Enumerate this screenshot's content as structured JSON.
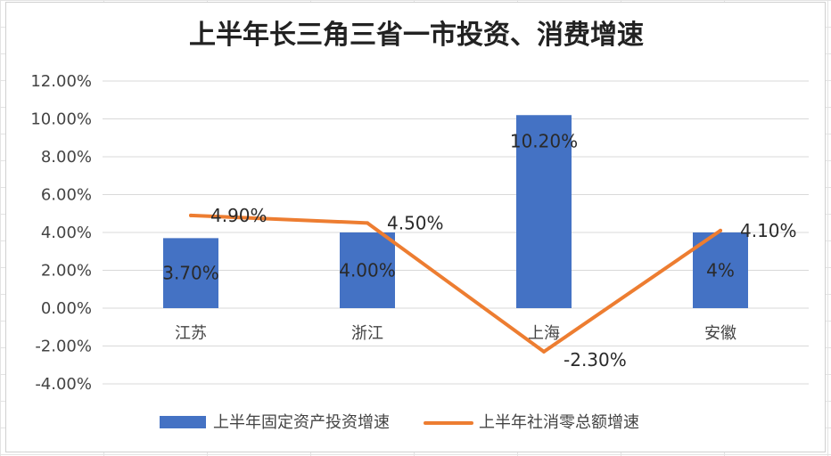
{
  "chart_data": {
    "type": "bar",
    "title": "上半年长三角三省一市投资、消费增速",
    "categories": [
      "江苏",
      "浙江",
      "上海",
      "安徽"
    ],
    "ylim": [
      -4,
      12
    ],
    "yticks": [
      "12.00%",
      "10.00%",
      "8.00%",
      "6.00%",
      "4.00%",
      "2.00%",
      "0.00%",
      "-2.00%",
      "-4.00%"
    ],
    "ytick_values": [
      12,
      10,
      8,
      6,
      4,
      2,
      0,
      -2,
      -4
    ],
    "grid": true,
    "legend_position": "bottom",
    "series": [
      {
        "name": "上半年固定资产投资增速",
        "type": "bar",
        "color": "#4472C4",
        "values": [
          3.7,
          4.0,
          10.2,
          4.0
        ],
        "labels": [
          "3.70%",
          "4.00%",
          "10.20%",
          "4%"
        ]
      },
      {
        "name": "上半年社消零总额增速",
        "type": "line",
        "color": "#ED7D31",
        "values": [
          4.9,
          4.5,
          -2.3,
          4.1
        ],
        "labels": [
          "4.90%",
          "4.50%",
          "-2.30%",
          "4.10%"
        ]
      }
    ]
  }
}
